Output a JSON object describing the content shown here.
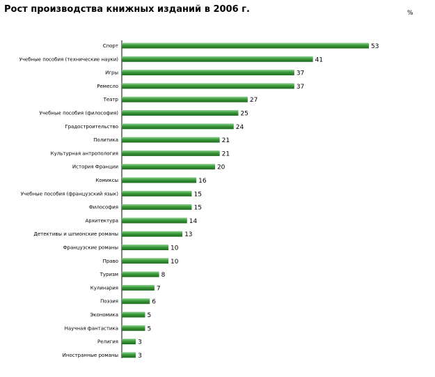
{
  "chart_data": {
    "type": "bar",
    "orientation": "horizontal",
    "title": "Рост производства книжных изданий в 2006 г.",
    "unit": "%",
    "xlim": [
      0,
      53
    ],
    "grid": false,
    "bar_color": "#3a9a3a",
    "categories": [
      "Спорт",
      "Учебные пособия (технические науки)",
      "Игры",
      "Ремесло",
      "Театр",
      "Учебные пособия (философия)",
      "Градостроительство",
      "Политика",
      "Культурная антропология",
      "История Франции",
      "Комиксы",
      "Учебные пособия (французский язык)",
      "Философия",
      "Архитектура",
      "Детективы и шпионские романы",
      "Французские романы",
      "Право",
      "Туризм",
      "Кулинария",
      "Поэзия",
      "Экономика",
      "Научная фантастика",
      "Религия",
      "Иностранные романы"
    ],
    "values": [
      53,
      41,
      37,
      37,
      27,
      25,
      24,
      21,
      21,
      20,
      16,
      15,
      15,
      14,
      13,
      10,
      10,
      8,
      7,
      6,
      5,
      5,
      3,
      3
    ]
  }
}
